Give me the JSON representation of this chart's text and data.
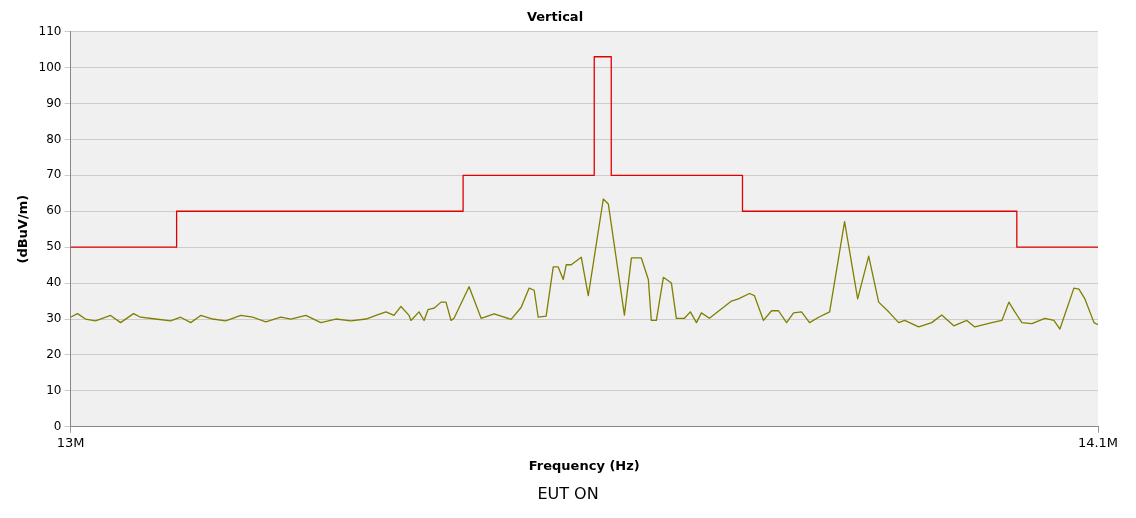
{
  "chart_data": {
    "type": "line",
    "title": "Vertical",
    "xlabel": "Frequency (Hz)",
    "ylabel": "(dBuV/m)",
    "annotations": [
      "EUT ON"
    ],
    "xlim": [
      13000000,
      14100000
    ],
    "xticks": [
      {
        "value": 13000000,
        "label": "13M"
      },
      {
        "value": 14100000,
        "label": "14.1M"
      }
    ],
    "ylim": [
      0,
      110
    ],
    "yticks": [
      0,
      10,
      20,
      30,
      40,
      50,
      60,
      70,
      80,
      90,
      100,
      110
    ],
    "grid": "y",
    "legend": false,
    "marker": "none",
    "line_style": "solid",
    "series": [
      {
        "color": "#e00000",
        "x": [
          13000000,
          13113600,
          13113600,
          13420300,
          13420300,
          13560700,
          13560700,
          13578900,
          13578900,
          13719400,
          13719400,
          14013100,
          14013100,
          14100000
        ],
        "values": [
          50,
          50,
          60,
          60,
          70,
          70,
          103,
          103,
          70,
          70,
          60,
          60,
          50,
          50
        ]
      },
      {
        "color": "#7f7f00",
        "x": [
          13000000,
          13007500,
          13016100,
          13026800,
          13042900,
          13053600,
          13067500,
          13075000,
          13091100,
          13107200,
          13117900,
          13128700,
          13139400,
          13152200,
          13166200,
          13182300,
          13195100,
          13209100,
          13225100,
          13235900,
          13251900,
          13268000,
          13284100,
          13300200,
          13316300,
          13327000,
          13337700,
          13346300,
          13353800,
          13362400,
          13364500,
          13373100,
          13378500,
          13382700,
          13389200,
          13396700,
          13402000,
          13407400,
          13410600,
          13426700,
          13439600,
          13453500,
          13471700,
          13482400,
          13491000,
          13496400,
          13500700,
          13509200,
          13516800,
          13522100,
          13527500,
          13530700,
          13536100,
          13546800,
          13554300,
          13570400,
          13575800,
          13593000,
          13600500,
          13611100,
          13618600,
          13621800,
          13627200,
          13634700,
          13643300,
          13648600,
          13657200,
          13663600,
          13670100,
          13675400,
          13684000,
          13700100,
          13707600,
          13715100,
          13726900,
          13732200,
          13741900,
          13750500,
          13757900,
          13766600,
          13774100,
          13782600,
          13791200,
          13800900,
          13812700,
          13828700,
          13842700,
          13854500,
          13865200,
          13875900,
          13886600,
          13893000,
          13908100,
          13922000,
          13932700,
          13945600,
          13959500,
          13968100,
          13986300,
          13997100,
          14004600,
          14011000,
          14018500,
          14029200,
          14043200,
          14052800,
          14059200,
          14074200,
          14079600,
          14086000,
          14095700,
          14100000
        ],
        "values": [
          30.5,
          31.5,
          30,
          29.5,
          31,
          29,
          31.5,
          30.5,
          30,
          29.5,
          30.5,
          29,
          31,
          30,
          29.5,
          31,
          30.5,
          29.2,
          30.5,
          30,
          31,
          29,
          30,
          29.5,
          30,
          31,
          32,
          31,
          33.5,
          31,
          29.6,
          32,
          29.6,
          32.6,
          33,
          34.7,
          34.7,
          29.6,
          30.2,
          39,
          30.2,
          31.4,
          29.9,
          33.2,
          38.6,
          38,
          30.5,
          30.8,
          44.5,
          44.5,
          41,
          45.1,
          45.1,
          47.2,
          36.5,
          63.4,
          62,
          31.1,
          47,
          47,
          41,
          29.6,
          29.6,
          41.6,
          40,
          30.2,
          30.2,
          32,
          29,
          31.7,
          30.2,
          33.5,
          35,
          35.6,
          37.1,
          36.5,
          29.6,
          32.3,
          32.3,
          29,
          31.7,
          32,
          29,
          30.5,
          32,
          57.1,
          35.6,
          47.5,
          34.7,
          32,
          29,
          29.6,
          27.8,
          29,
          31.1,
          28.1,
          29.6,
          27.8,
          29,
          29.6,
          34.7,
          32,
          29,
          28.7,
          30.2,
          29.6,
          27.2,
          38.6,
          38.3,
          35.6,
          29,
          28.4
        ]
      }
    ]
  }
}
